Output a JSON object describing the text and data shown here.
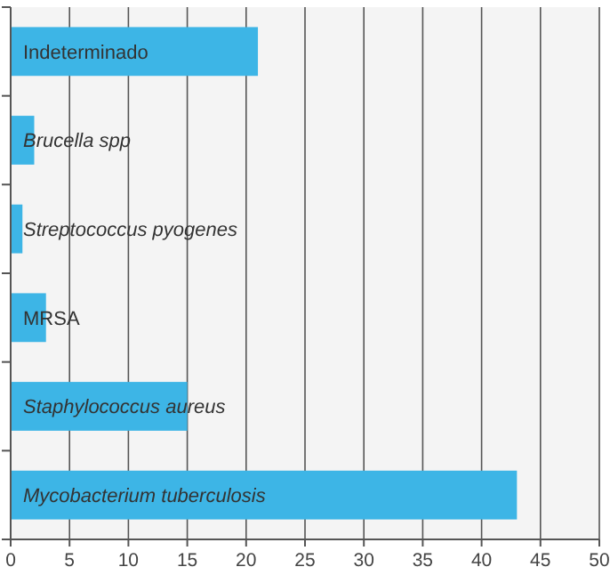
{
  "chart_data": {
    "type": "bar",
    "orientation": "horizontal",
    "categories": [
      "Indeterminado",
      "Brucella spp",
      "Streptococcus pyogenes",
      "MRSA",
      "Staphylococcus aureus",
      "Mycobacterium tuberculosis"
    ],
    "values": [
      21,
      2,
      1,
      3,
      15,
      43
    ],
    "color": "#3db5e6",
    "xlim": [
      0,
      50
    ],
    "xticks": [
      0,
      5,
      10,
      15,
      20,
      25,
      30,
      35,
      40,
      45,
      50
    ],
    "grid": "x"
  }
}
